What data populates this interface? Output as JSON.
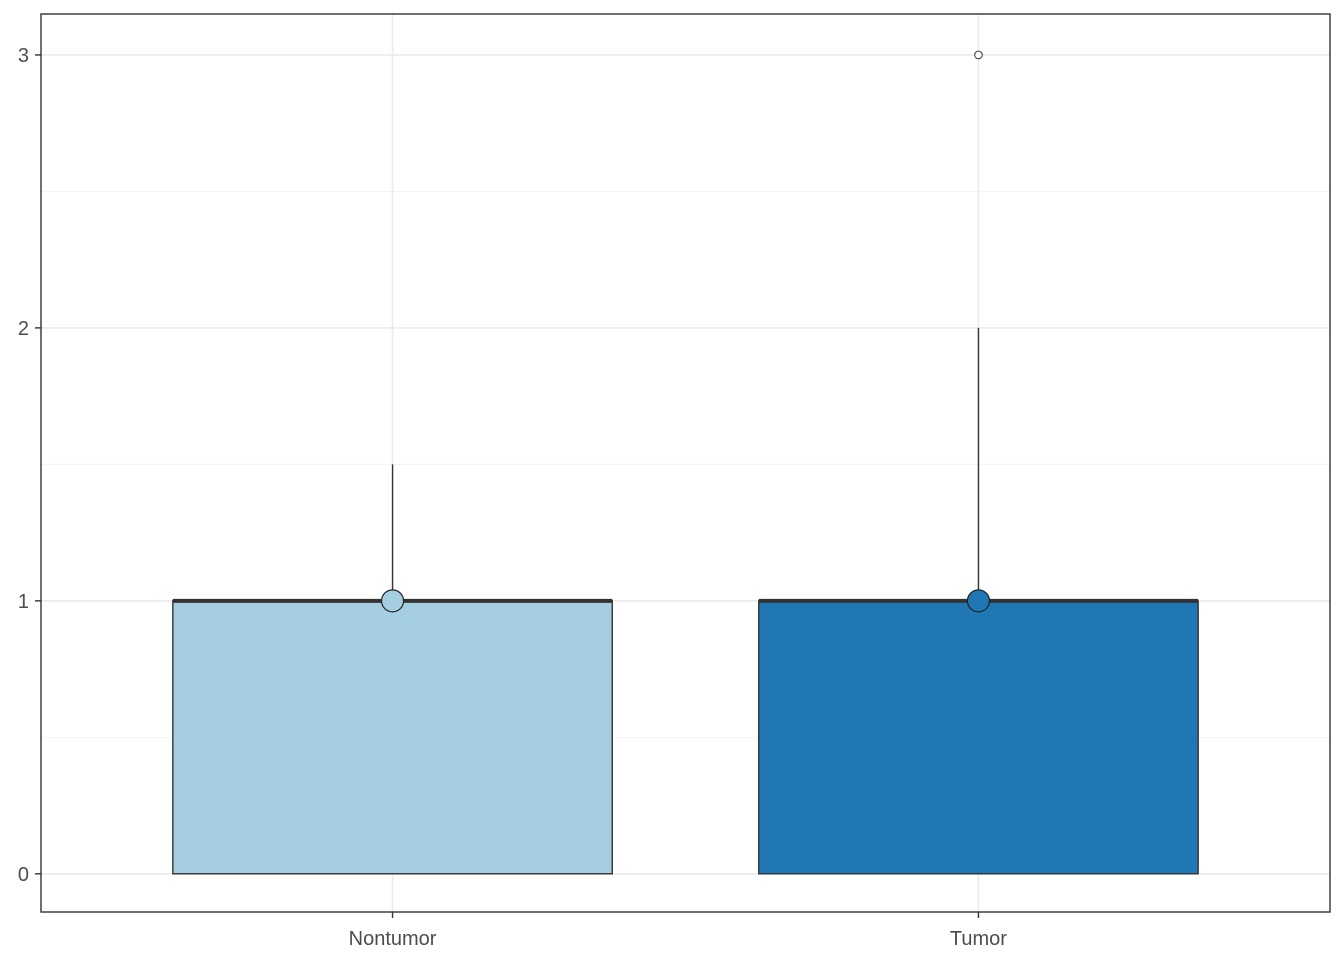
{
  "chart_data": {
    "type": "boxplot",
    "categories": [
      "Nontumor",
      "Tumor"
    ],
    "ylim": [
      -0.14,
      3.15
    ],
    "yticks": [
      0,
      1,
      2,
      3
    ],
    "ytick_labels": [
      "0",
      "1",
      "2",
      "3"
    ],
    "grid": true,
    "boxes": [
      {
        "category": "Nontumor",
        "min": 0,
        "q1": 0,
        "median": 1,
        "q3": 1,
        "max": 1.5,
        "mean": 1,
        "outliers": [],
        "color": "#a6cee3"
      },
      {
        "category": "Tumor",
        "min": 0,
        "q1": 0,
        "median": 1,
        "q3": 1,
        "max": 2,
        "mean": 1,
        "outliers": [
          3
        ],
        "color": "#1f78b4"
      }
    ]
  }
}
